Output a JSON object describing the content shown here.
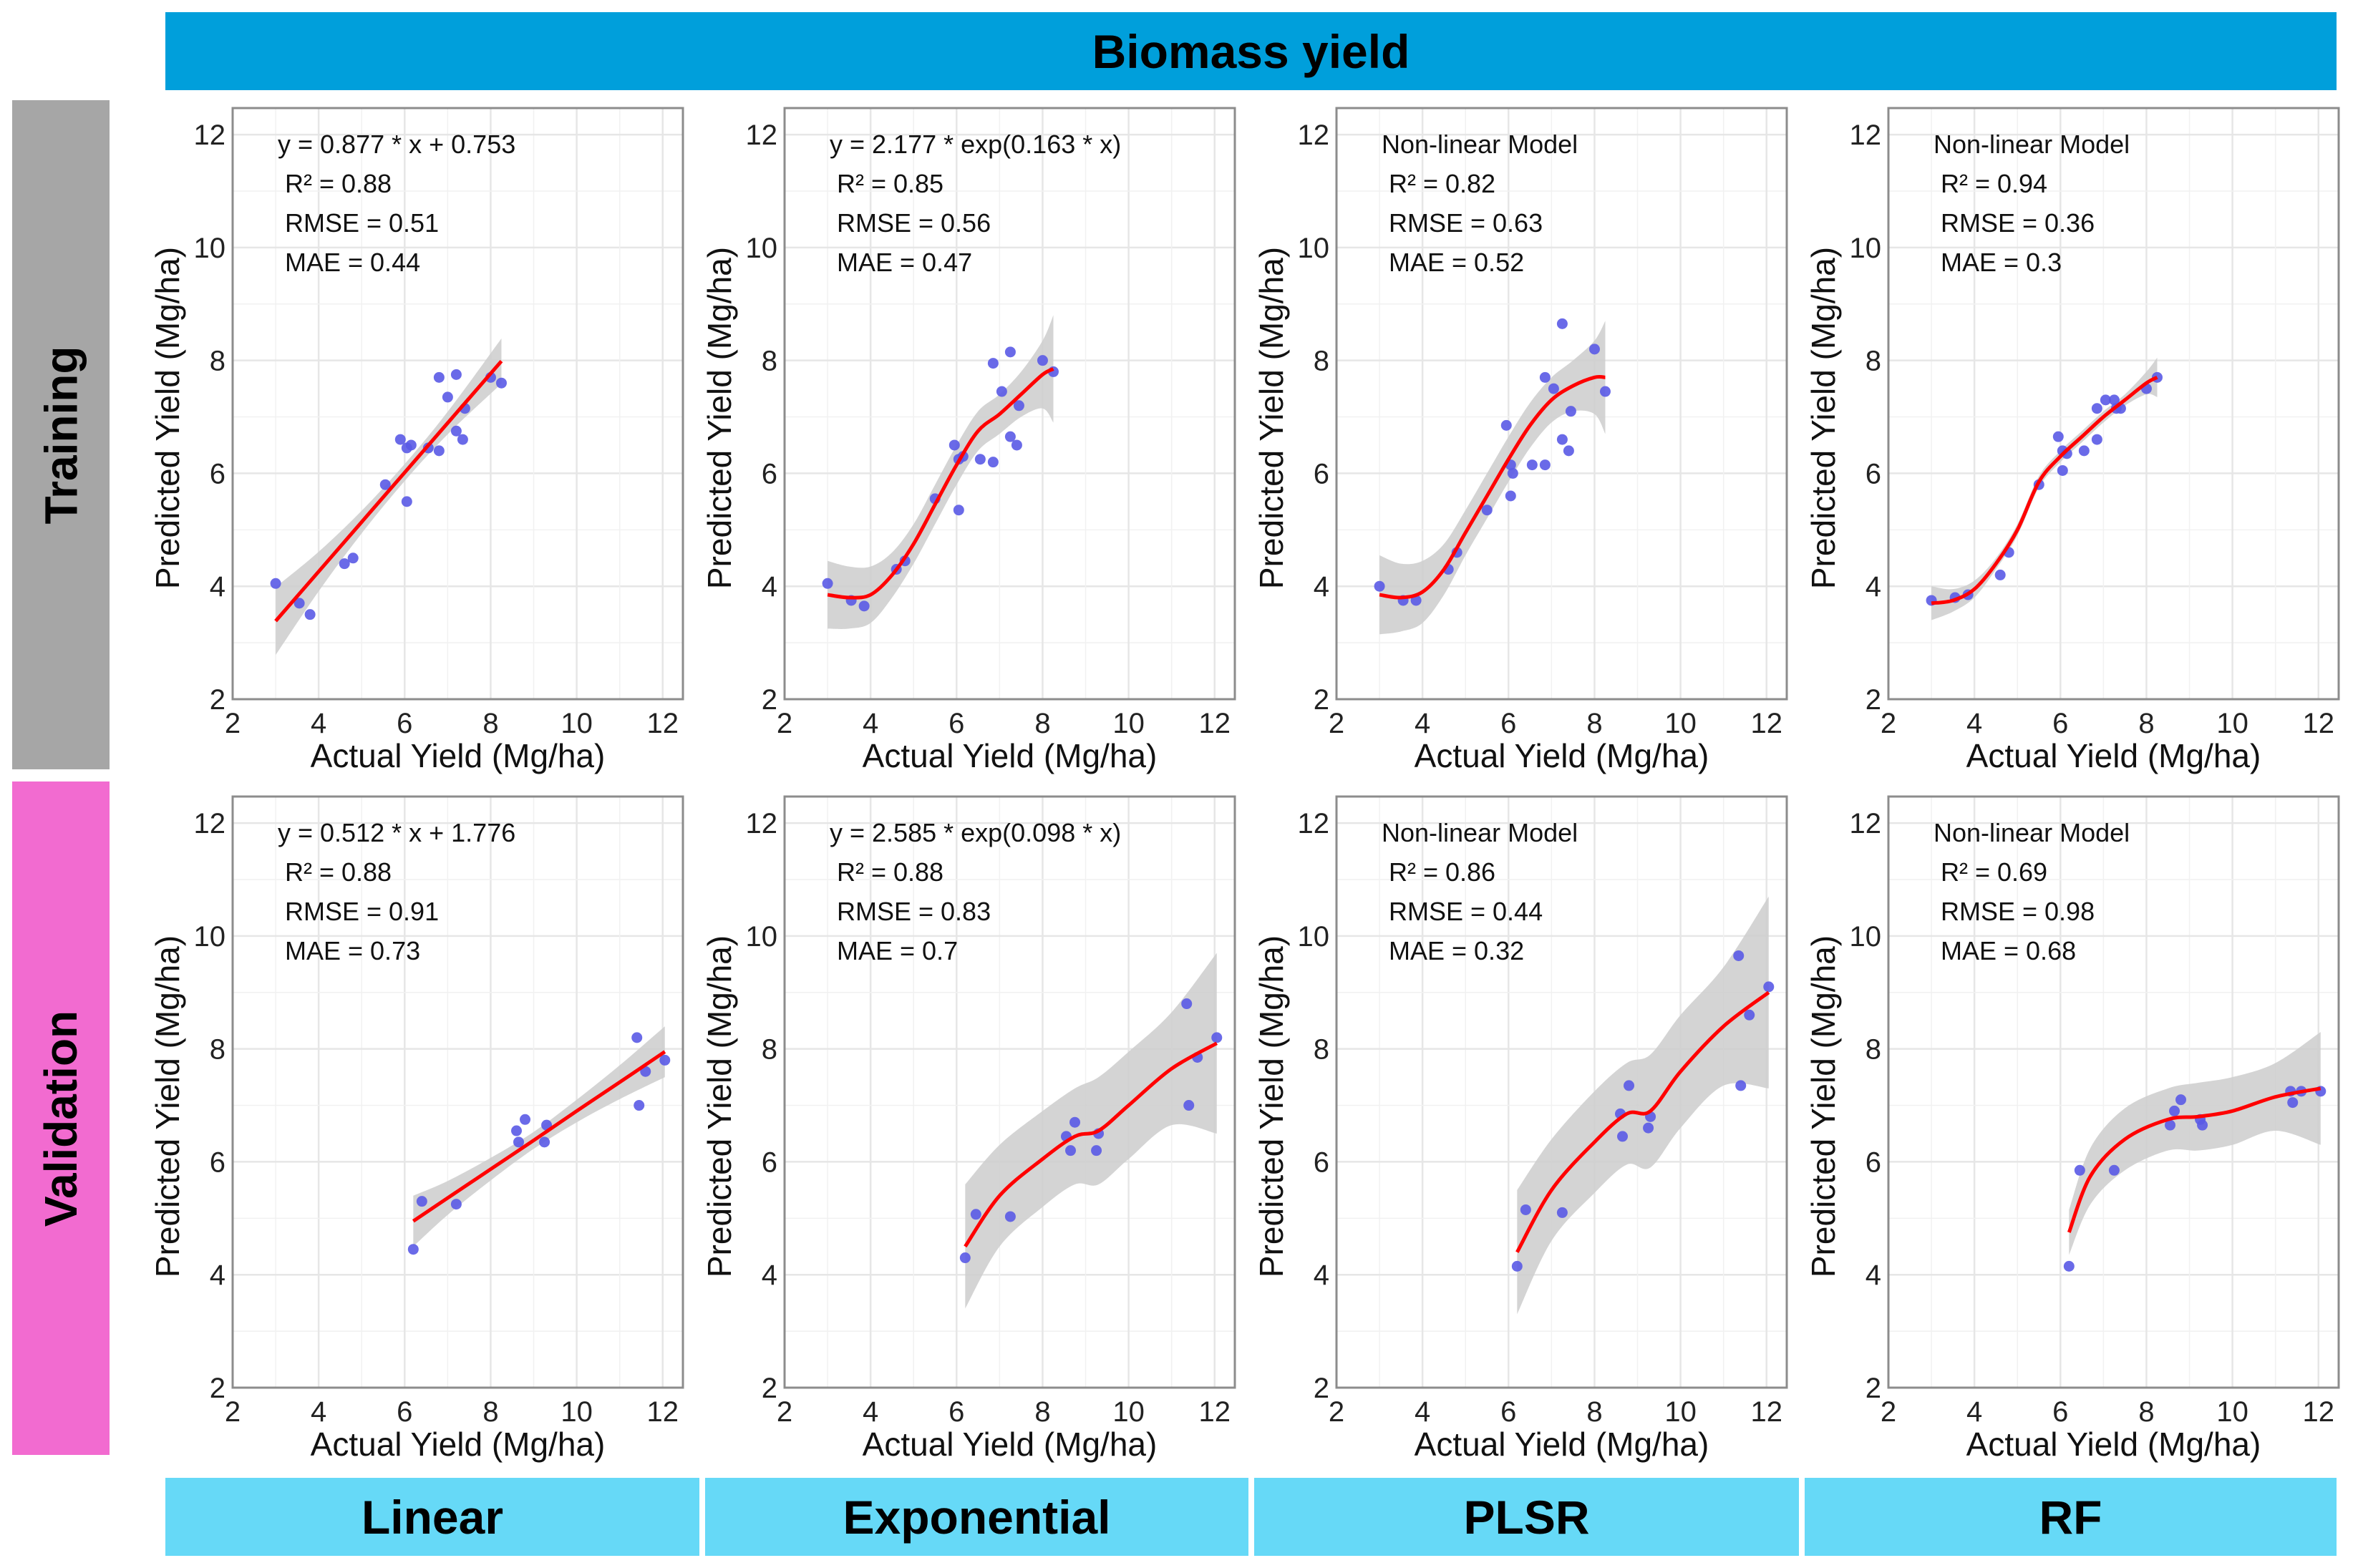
{
  "header": {
    "title": "Biomass yield"
  },
  "rows": [
    "Training",
    "Validation"
  ],
  "models": [
    "Linear",
    "Exponential",
    "PLSR",
    "RF"
  ],
  "colors": {
    "header": "#009fdb",
    "training": "#a6a6a6",
    "validation": "#f26bd0",
    "footer": "#66d9f7",
    "points": "#5a5ae6",
    "fit": "#ff0000",
    "band": "#cccccc"
  },
  "chart_data": [
    {
      "type": "scatter",
      "row": "Training",
      "model": "Linear",
      "annotation": [
        "y = 0.877 * x + 0.753",
        "R² =  0.88",
        "RMSE =  0.51",
        "MAE =  0.44"
      ],
      "xlabel": "Actual Yield (Mg/ha)",
      "ylabel": "Predicted Yield (Mg/ha)",
      "xlim": [
        2,
        12.47
      ],
      "ylim": [
        2,
        12.47
      ],
      "xticks": [
        2,
        4,
        6,
        8,
        10,
        12
      ],
      "yticks": [
        2,
        4,
        6,
        8,
        10,
        12
      ],
      "grid": true,
      "points": [
        [
          3.0,
          4.05
        ],
        [
          3.55,
          3.7
        ],
        [
          3.8,
          3.5
        ],
        [
          4.6,
          4.4
        ],
        [
          4.8,
          4.5
        ],
        [
          5.55,
          5.8
        ],
        [
          5.9,
          6.6
        ],
        [
          6.05,
          6.45
        ],
        [
          6.15,
          6.5
        ],
        [
          6.05,
          5.5
        ],
        [
          6.55,
          6.45
        ],
        [
          6.8,
          6.4
        ],
        [
          6.8,
          7.7
        ],
        [
          7.0,
          7.35
        ],
        [
          7.2,
          7.75
        ],
        [
          7.2,
          6.75
        ],
        [
          7.35,
          6.6
        ],
        [
          7.4,
          7.15
        ],
        [
          8.0,
          7.7
        ],
        [
          8.25,
          7.6
        ]
      ],
      "fit": {
        "x": [
          3,
          4,
          5,
          6,
          7,
          8.25
        ],
        "y": [
          3.384,
          4.261,
          5.138,
          6.015,
          6.892,
          7.988
        ],
        "band": [
          0.6,
          0.35,
          0.2,
          0.15,
          0.2,
          0.4
        ]
      }
    },
    {
      "type": "scatter",
      "row": "Training",
      "model": "Exponential",
      "annotation": [
        "y = 2.177 * exp(0.163 * x)",
        "R² =  0.85",
        "RMSE =  0.56",
        "MAE =  0.47"
      ],
      "xlabel": "Actual Yield (Mg/ha)",
      "ylabel": "Predicted Yield (Mg/ha)",
      "xlim": [
        2,
        12.47
      ],
      "ylim": [
        2,
        12.47
      ],
      "xticks": [
        2,
        4,
        6,
        8,
        10,
        12
      ],
      "yticks": [
        2,
        4,
        6,
        8,
        10,
        12
      ],
      "grid": true,
      "points": [
        [
          3.0,
          4.05
        ],
        [
          3.55,
          3.75
        ],
        [
          3.85,
          3.65
        ],
        [
          4.6,
          4.3
        ],
        [
          4.8,
          4.45
        ],
        [
          5.5,
          5.55
        ],
        [
          5.95,
          6.5
        ],
        [
          6.05,
          6.25
        ],
        [
          6.15,
          6.3
        ],
        [
          6.05,
          5.35
        ],
        [
          6.55,
          6.25
        ],
        [
          6.85,
          6.2
        ],
        [
          6.85,
          7.95
        ],
        [
          7.05,
          7.45
        ],
        [
          7.25,
          8.15
        ],
        [
          7.25,
          6.65
        ],
        [
          7.4,
          6.5
        ],
        [
          7.45,
          7.2
        ],
        [
          8.0,
          8.0
        ],
        [
          8.25,
          7.8
        ]
      ],
      "fit": {
        "x": [
          3,
          3.5,
          4,
          4.5,
          5,
          5.5,
          6,
          6.5,
          7,
          7.5,
          8,
          8.25
        ],
        "y": [
          3.85,
          3.8,
          3.85,
          4.2,
          4.75,
          5.45,
          6.15,
          6.75,
          7.05,
          7.4,
          7.75,
          7.85
        ],
        "band": [
          0.6,
          0.55,
          0.5,
          0.4,
          0.35,
          0.35,
          0.35,
          0.35,
          0.35,
          0.4,
          0.6,
          0.95
        ]
      }
    },
    {
      "type": "scatter",
      "row": "Training",
      "model": "PLSR",
      "annotation": [
        "Non-linear Model",
        "R² =  0.82",
        "RMSE =  0.63",
        "MAE =  0.52"
      ],
      "xlabel": "Actual Yield (Mg/ha)",
      "ylabel": "Predicted Yield (Mg/ha)",
      "xlim": [
        2,
        12.47
      ],
      "ylim": [
        2,
        12.47
      ],
      "xticks": [
        2,
        4,
        6,
        8,
        10,
        12
      ],
      "yticks": [
        2,
        4,
        6,
        8,
        10,
        12
      ],
      "grid": true,
      "points": [
        [
          3.0,
          4.0
        ],
        [
          3.55,
          3.75
        ],
        [
          3.85,
          3.75
        ],
        [
          4.6,
          4.3
        ],
        [
          4.8,
          4.6
        ],
        [
          5.5,
          5.35
        ],
        [
          5.95,
          6.85
        ],
        [
          6.05,
          6.15
        ],
        [
          6.1,
          6.0
        ],
        [
          6.05,
          5.6
        ],
        [
          6.55,
          6.15
        ],
        [
          6.85,
          6.15
        ],
        [
          6.85,
          7.7
        ],
        [
          7.05,
          7.5
        ],
        [
          7.25,
          8.65
        ],
        [
          7.25,
          6.6
        ],
        [
          7.4,
          6.4
        ],
        [
          7.45,
          7.1
        ],
        [
          8.0,
          8.2
        ],
        [
          8.25,
          7.45
        ]
      ],
      "fit": {
        "x": [
          3,
          3.5,
          4,
          4.5,
          5,
          5.5,
          6,
          6.5,
          7,
          7.5,
          8,
          8.25
        ],
        "y": [
          3.85,
          3.8,
          3.9,
          4.3,
          4.95,
          5.6,
          6.25,
          6.85,
          7.3,
          7.55,
          7.7,
          7.7
        ],
        "band": [
          0.7,
          0.6,
          0.55,
          0.45,
          0.4,
          0.4,
          0.4,
          0.4,
          0.4,
          0.45,
          0.65,
          1.0
        ]
      }
    },
    {
      "type": "scatter",
      "row": "Training",
      "model": "RF",
      "annotation": [
        "Non-linear Model",
        "R² =  0.94",
        "RMSE =  0.36",
        "MAE =  0.3"
      ],
      "xlabel": "Actual Yield (Mg/ha)",
      "ylabel": "Predicted Yield (Mg/ha)",
      "xlim": [
        2,
        12.47
      ],
      "ylim": [
        2,
        12.47
      ],
      "xticks": [
        2,
        4,
        6,
        8,
        10,
        12
      ],
      "yticks": [
        2,
        4,
        6,
        8,
        10,
        12
      ],
      "grid": true,
      "points": [
        [
          3.0,
          3.75
        ],
        [
          3.55,
          3.8
        ],
        [
          3.85,
          3.85
        ],
        [
          4.6,
          4.2
        ],
        [
          4.8,
          4.6
        ],
        [
          5.5,
          5.8
        ],
        [
          5.95,
          6.65
        ],
        [
          6.05,
          6.4
        ],
        [
          6.15,
          6.35
        ],
        [
          6.05,
          6.05
        ],
        [
          6.55,
          6.4
        ],
        [
          6.85,
          6.6
        ],
        [
          6.85,
          7.15
        ],
        [
          7.05,
          7.3
        ],
        [
          7.25,
          7.3
        ],
        [
          7.3,
          7.15
        ],
        [
          7.4,
          7.15
        ],
        [
          8.0,
          7.5
        ],
        [
          8.25,
          7.7
        ]
      ],
      "fit": {
        "x": [
          3,
          3.5,
          4,
          4.5,
          5,
          5.5,
          6,
          6.5,
          7,
          7.5,
          8,
          8.25
        ],
        "y": [
          3.7,
          3.75,
          3.95,
          4.4,
          5.0,
          5.85,
          6.3,
          6.65,
          7.0,
          7.3,
          7.6,
          7.7
        ],
        "band": [
          0.3,
          0.2,
          0.15,
          0.1,
          0.1,
          0.1,
          0.1,
          0.1,
          0.1,
          0.1,
          0.2,
          0.35
        ]
      }
    },
    {
      "type": "scatter",
      "row": "Validation",
      "model": "Linear",
      "annotation": [
        "y = 0.512 * x + 1.776",
        "R² =  0.88",
        "RMSE =  0.91",
        "MAE =  0.73"
      ],
      "xlabel": "Actual Yield (Mg/ha)",
      "ylabel": "Predicted Yield (Mg/ha)",
      "xlim": [
        2,
        12.47
      ],
      "ylim": [
        2,
        12.47
      ],
      "xticks": [
        2,
        4,
        6,
        8,
        10,
        12
      ],
      "yticks": [
        2,
        4,
        6,
        8,
        10,
        12
      ],
      "grid": true,
      "points": [
        [
          6.2,
          4.45
        ],
        [
          6.4,
          5.3
        ],
        [
          7.2,
          5.25
        ],
        [
          8.6,
          6.55
        ],
        [
          8.65,
          6.35
        ],
        [
          8.8,
          6.75
        ],
        [
          9.25,
          6.35
        ],
        [
          9.3,
          6.65
        ],
        [
          11.4,
          8.2
        ],
        [
          11.45,
          7.0
        ],
        [
          11.6,
          7.6
        ],
        [
          12.05,
          7.8
        ]
      ],
      "fit": {
        "x": [
          6.2,
          7,
          8,
          9,
          10,
          11,
          12.05
        ],
        "y": [
          4.95,
          5.36,
          5.87,
          6.38,
          6.9,
          7.41,
          7.95
        ],
        "band": [
          0.45,
          0.3,
          0.2,
          0.15,
          0.2,
          0.3,
          0.45
        ]
      }
    },
    {
      "type": "scatter",
      "row": "Validation",
      "model": "Exponential",
      "annotation": [
        "y = 2.585 * exp(0.098 * x)",
        "R² =  0.88",
        "RMSE =  0.83",
        "MAE =  0.7"
      ],
      "xlabel": "Actual Yield (Mg/ha)",
      "ylabel": "Predicted Yield (Mg/ha)",
      "xlim": [
        2,
        12.47
      ],
      "ylim": [
        2,
        12.47
      ],
      "xticks": [
        2,
        4,
        6,
        8,
        10,
        12
      ],
      "yticks": [
        2,
        4,
        6,
        8,
        10,
        12
      ],
      "grid": true,
      "points": [
        [
          6.2,
          4.3
        ],
        [
          6.45,
          5.07
        ],
        [
          7.25,
          5.03
        ],
        [
          8.55,
          6.45
        ],
        [
          8.65,
          6.2
        ],
        [
          8.75,
          6.7
        ],
        [
          9.3,
          6.5
        ],
        [
          9.25,
          6.2
        ],
        [
          11.35,
          8.8
        ],
        [
          11.4,
          7.0
        ],
        [
          11.6,
          7.85
        ],
        [
          12.05,
          8.2
        ]
      ],
      "fit": {
        "x": [
          6.2,
          7,
          8,
          8.75,
          9.3,
          10,
          11,
          12.05
        ],
        "y": [
          4.5,
          5.4,
          6.05,
          6.45,
          6.55,
          7.0,
          7.65,
          8.1
        ],
        "band": [
          1.1,
          0.9,
          0.85,
          0.85,
          0.95,
          0.95,
          1.0,
          1.6
        ]
      }
    },
    {
      "type": "scatter",
      "row": "Validation",
      "model": "PLSR",
      "annotation": [
        "Non-linear Model",
        "R² =  0.86",
        "RMSE =  0.44",
        "MAE =  0.32"
      ],
      "xlabel": "Actual Yield (Mg/ha)",
      "ylabel": "Predicted Yield (Mg/ha)",
      "xlim": [
        2,
        12.47
      ],
      "ylim": [
        2,
        12.47
      ],
      "xticks": [
        2,
        4,
        6,
        8,
        10,
        12
      ],
      "yticks": [
        2,
        4,
        6,
        8,
        10,
        12
      ],
      "grid": true,
      "points": [
        [
          6.2,
          4.15
        ],
        [
          6.4,
          5.15
        ],
        [
          7.25,
          5.1
        ],
        [
          8.6,
          6.85
        ],
        [
          8.65,
          6.45
        ],
        [
          8.8,
          7.35
        ],
        [
          9.3,
          6.8
        ],
        [
          9.25,
          6.6
        ],
        [
          11.35,
          9.65
        ],
        [
          11.4,
          7.35
        ],
        [
          11.6,
          8.6
        ],
        [
          12.05,
          9.1
        ]
      ],
      "fit": {
        "x": [
          6.2,
          7,
          8,
          8.75,
          9.3,
          10,
          11,
          12.05
        ],
        "y": [
          4.4,
          5.5,
          6.35,
          6.85,
          6.9,
          7.6,
          8.4,
          9.0
        ],
        "band": [
          1.1,
          0.9,
          0.9,
          0.9,
          1.0,
          1.0,
          1.05,
          1.7
        ]
      }
    },
    {
      "type": "scatter",
      "row": "Validation",
      "model": "RF",
      "annotation": [
        "Non-linear Model",
        "R² =  0.69",
        "RMSE =  0.98",
        "MAE =  0.68"
      ],
      "xlabel": "Actual Yield (Mg/ha)",
      "ylabel": "Predicted Yield (Mg/ha)",
      "xlim": [
        2,
        12.47
      ],
      "ylim": [
        2,
        12.47
      ],
      "xticks": [
        2,
        4,
        6,
        8,
        10,
        12
      ],
      "yticks": [
        2,
        4,
        6,
        8,
        10,
        12
      ],
      "grid": true,
      "points": [
        [
          6.2,
          4.15
        ],
        [
          6.45,
          5.85
        ],
        [
          7.25,
          5.85
        ],
        [
          8.55,
          6.65
        ],
        [
          8.65,
          6.9
        ],
        [
          8.8,
          7.1
        ],
        [
          9.3,
          6.65
        ],
        [
          9.25,
          6.75
        ],
        [
          11.35,
          7.25
        ],
        [
          11.4,
          7.05
        ],
        [
          11.6,
          7.25
        ],
        [
          12.05,
          7.25
        ]
      ],
      "fit": {
        "x": [
          6.2,
          6.7,
          7.5,
          8.5,
          9.2,
          10,
          11,
          12.05
        ],
        "y": [
          4.75,
          5.75,
          6.4,
          6.75,
          6.8,
          6.9,
          7.15,
          7.3
        ],
        "band": [
          0.4,
          0.5,
          0.55,
          0.55,
          0.6,
          0.6,
          0.6,
          1.0
        ]
      }
    }
  ]
}
